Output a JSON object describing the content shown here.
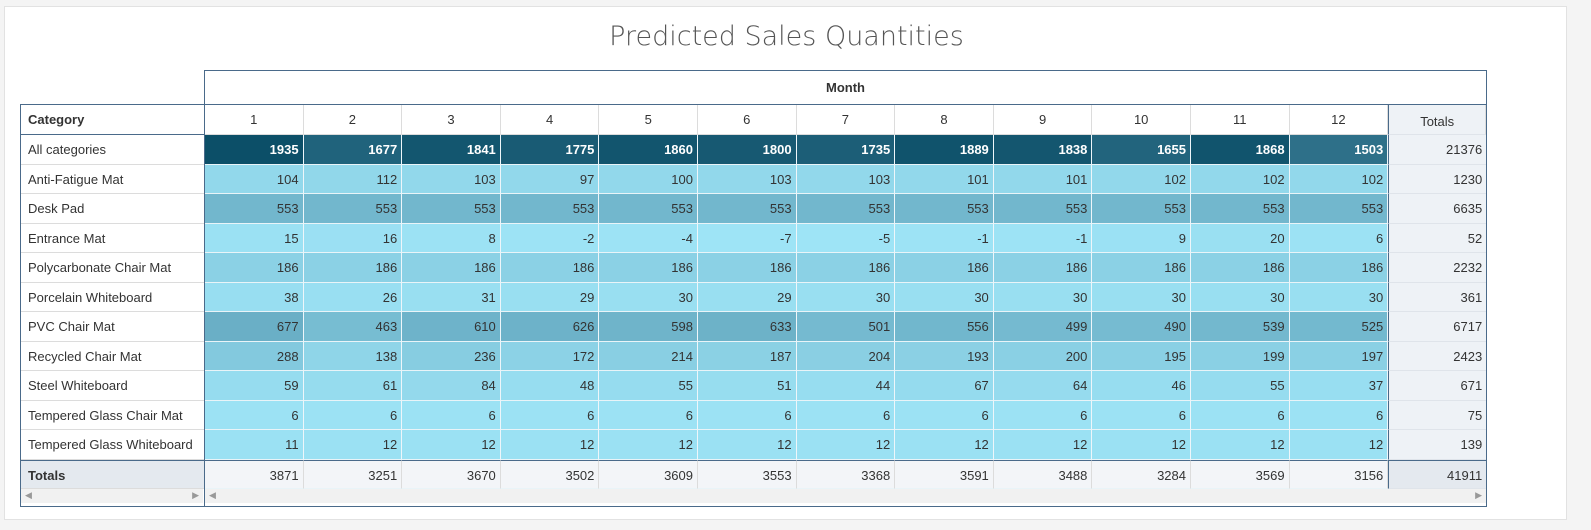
{
  "title": "Predicted Sales Quantities",
  "column_header": "Month",
  "row_header": "Category",
  "totals_label": "Totals",
  "months": [
    "1",
    "2",
    "3",
    "4",
    "5",
    "6",
    "7",
    "8",
    "9",
    "10",
    "11",
    "12"
  ],
  "rows": [
    {
      "label": "All categories",
      "values": [
        1935,
        1677,
        1841,
        1775,
        1860,
        1800,
        1735,
        1889,
        1838,
        1655,
        1868,
        1503
      ],
      "total": 21376
    },
    {
      "label": "Anti-Fatigue Mat",
      "values": [
        104,
        112,
        103,
        97,
        100,
        103,
        103,
        101,
        101,
        102,
        102,
        102
      ],
      "total": 1230
    },
    {
      "label": "Desk Pad",
      "values": [
        553,
        553,
        553,
        553,
        553,
        553,
        553,
        553,
        553,
        553,
        553,
        553
      ],
      "total": 6635
    },
    {
      "label": "Entrance Mat",
      "values": [
        15,
        16,
        8,
        -2,
        -4,
        -7,
        -5,
        -1,
        -1,
        9,
        20,
        6
      ],
      "total": 52
    },
    {
      "label": "Polycarbonate Chair Mat",
      "values": [
        186,
        186,
        186,
        186,
        186,
        186,
        186,
        186,
        186,
        186,
        186,
        186
      ],
      "total": 2232
    },
    {
      "label": "Porcelain Whiteboard",
      "values": [
        38,
        26,
        31,
        29,
        30,
        29,
        30,
        30,
        30,
        30,
        30,
        30
      ],
      "total": 361
    },
    {
      "label": "PVC Chair Mat",
      "values": [
        677,
        463,
        610,
        626,
        598,
        633,
        501,
        556,
        499,
        490,
        539,
        525
      ],
      "total": 6717
    },
    {
      "label": "Recycled Chair Mat",
      "values": [
        288,
        138,
        236,
        172,
        214,
        187,
        204,
        193,
        200,
        195,
        199,
        197
      ],
      "total": 2423
    },
    {
      "label": "Steel Whiteboard",
      "values": [
        59,
        61,
        84,
        48,
        55,
        51,
        44,
        67,
        64,
        46,
        55,
        37
      ],
      "total": 671
    },
    {
      "label": "Tempered Glass Chair Mat",
      "values": [
        6,
        6,
        6,
        6,
        6,
        6,
        6,
        6,
        6,
        6,
        6,
        6
      ],
      "total": 75
    },
    {
      "label": "Tempered Glass Whiteboard",
      "values": [
        11,
        12,
        12,
        12,
        12,
        12,
        12,
        12,
        12,
        12,
        12,
        12
      ],
      "total": 139
    }
  ],
  "column_totals": [
    3871,
    3251,
    3670,
    3502,
    3609,
    3553,
    3368,
    3591,
    3488,
    3284,
    3569,
    3156
  ],
  "grand_total": 41911,
  "colors": {
    "all_dark": "#0c4f68",
    "all_light": "#2e7089",
    "heat_low": "#9ee4f6",
    "heat_high": "#6aafc6"
  }
}
